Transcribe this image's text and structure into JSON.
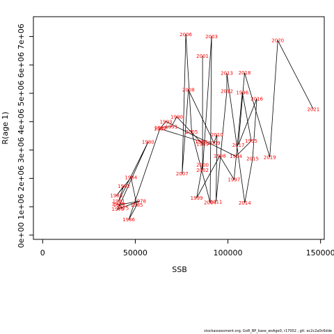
{
  "chart_data": {
    "type": "line",
    "xlabel": "SSB",
    "ylabel": "R(age 1)",
    "xlim": [
      -5000,
      152000
    ],
    "ylim": [
      -150000,
      7700000
    ],
    "x_ticks": [
      0,
      50000,
      100000,
      150000
    ],
    "x_tick_labels": [
      "0",
      "50000",
      "100000",
      "150000"
    ],
    "y_ticks": [
      0,
      1000000,
      2000000,
      3000000,
      4000000,
      5000000,
      6000000,
      7000000
    ],
    "y_tick_labels": [
      "0e+00",
      "1e+06",
      "2e+06",
      "3e+06",
      "4e+06",
      "5e+06",
      "6e+06",
      "7e+06"
    ],
    "grid": false,
    "point_color": "#ff0000",
    "line_color": "#000000",
    "points": [
      {
        "year": "1975",
        "x": 43200,
        "y": 950000
      },
      {
        "year": "1976",
        "x": 40600,
        "y": 1100000
      },
      {
        "year": "1977",
        "x": 41400,
        "y": 1070000
      },
      {
        "year": "1978",
        "x": 52500,
        "y": 1200000
      },
      {
        "year": "1979",
        "x": 40600,
        "y": 920000
      },
      {
        "year": "1980",
        "x": 56900,
        "y": 3280000
      },
      {
        "year": "1981",
        "x": 41000,
        "y": 1200000
      },
      {
        "year": "1982",
        "x": 43800,
        "y": 1730000
      },
      {
        "year": "1983",
        "x": 39800,
        "y": 1390000
      },
      {
        "year": "1984",
        "x": 47700,
        "y": 2030000
      },
      {
        "year": "1985",
        "x": 50800,
        "y": 1060000
      },
      {
        "year": "1986",
        "x": 46500,
        "y": 550000
      },
      {
        "year": "1987",
        "x": 63300,
        "y": 3750000
      },
      {
        "year": "1988",
        "x": 85600,
        "y": 3300000
      },
      {
        "year": "1989",
        "x": 86300,
        "y": 3210000
      },
      {
        "year": "1990",
        "x": 72400,
        "y": 4170000
      },
      {
        "year": "1991",
        "x": 69500,
        "y": 3830000
      },
      {
        "year": "1992",
        "x": 63700,
        "y": 3790000
      },
      {
        "year": "1993",
        "x": 66600,
        "y": 4000000
      },
      {
        "year": "1994",
        "x": 104300,
        "y": 2780000
      },
      {
        "year": "1995",
        "x": 112600,
        "y": 3320000
      },
      {
        "year": "1996",
        "x": 107800,
        "y": 5020000
      },
      {
        "year": "1997",
        "x": 103300,
        "y": 1960000
      },
      {
        "year": "1998",
        "x": 95600,
        "y": 2790000
      },
      {
        "year": "1999",
        "x": 83100,
        "y": 1310000
      },
      {
        "year": "2000",
        "x": 86300,
        "y": 2480000
      },
      {
        "year": "2001",
        "x": 86300,
        "y": 6310000
      },
      {
        "year": "2002",
        "x": 86300,
        "y": 2290000
      },
      {
        "year": "2003",
        "x": 91200,
        "y": 7000000
      },
      {
        "year": "2004",
        "x": 90400,
        "y": 1150000
      },
      {
        "year": "2005",
        "x": 80400,
        "y": 3640000
      },
      {
        "year": "2006",
        "x": 77300,
        "y": 7080000
      },
      {
        "year": "2007",
        "x": 75300,
        "y": 2170000
      },
      {
        "year": "2008",
        "x": 78700,
        "y": 5120000
      },
      {
        "year": "2009",
        "x": 92500,
        "y": 3250000
      },
      {
        "year": "2010",
        "x": 94100,
        "y": 3540000
      },
      {
        "year": "2011",
        "x": 93600,
        "y": 1180000
      },
      {
        "year": "2012",
        "x": 99400,
        "y": 5080000
      },
      {
        "year": "2013",
        "x": 99400,
        "y": 5710000
      },
      {
        "year": "2014",
        "x": 109100,
        "y": 1140000
      },
      {
        "year": "2015",
        "x": 113300,
        "y": 2690000
      },
      {
        "year": "2016",
        "x": 115600,
        "y": 4810000
      },
      {
        "year": "2017",
        "x": 105600,
        "y": 3180000
      },
      {
        "year": "2018",
        "x": 109000,
        "y": 5720000
      },
      {
        "year": "2019",
        "x": 122600,
        "y": 2750000
      },
      {
        "year": "2020",
        "x": 126900,
        "y": 6860000
      },
      {
        "year": "2021",
        "x": 146100,
        "y": 4440000
      }
    ]
  },
  "footer_text": "stockassessment.org,  GoR_BP_base_wsAge0,  r17002 ,  git: ec2c2a0c6dde"
}
